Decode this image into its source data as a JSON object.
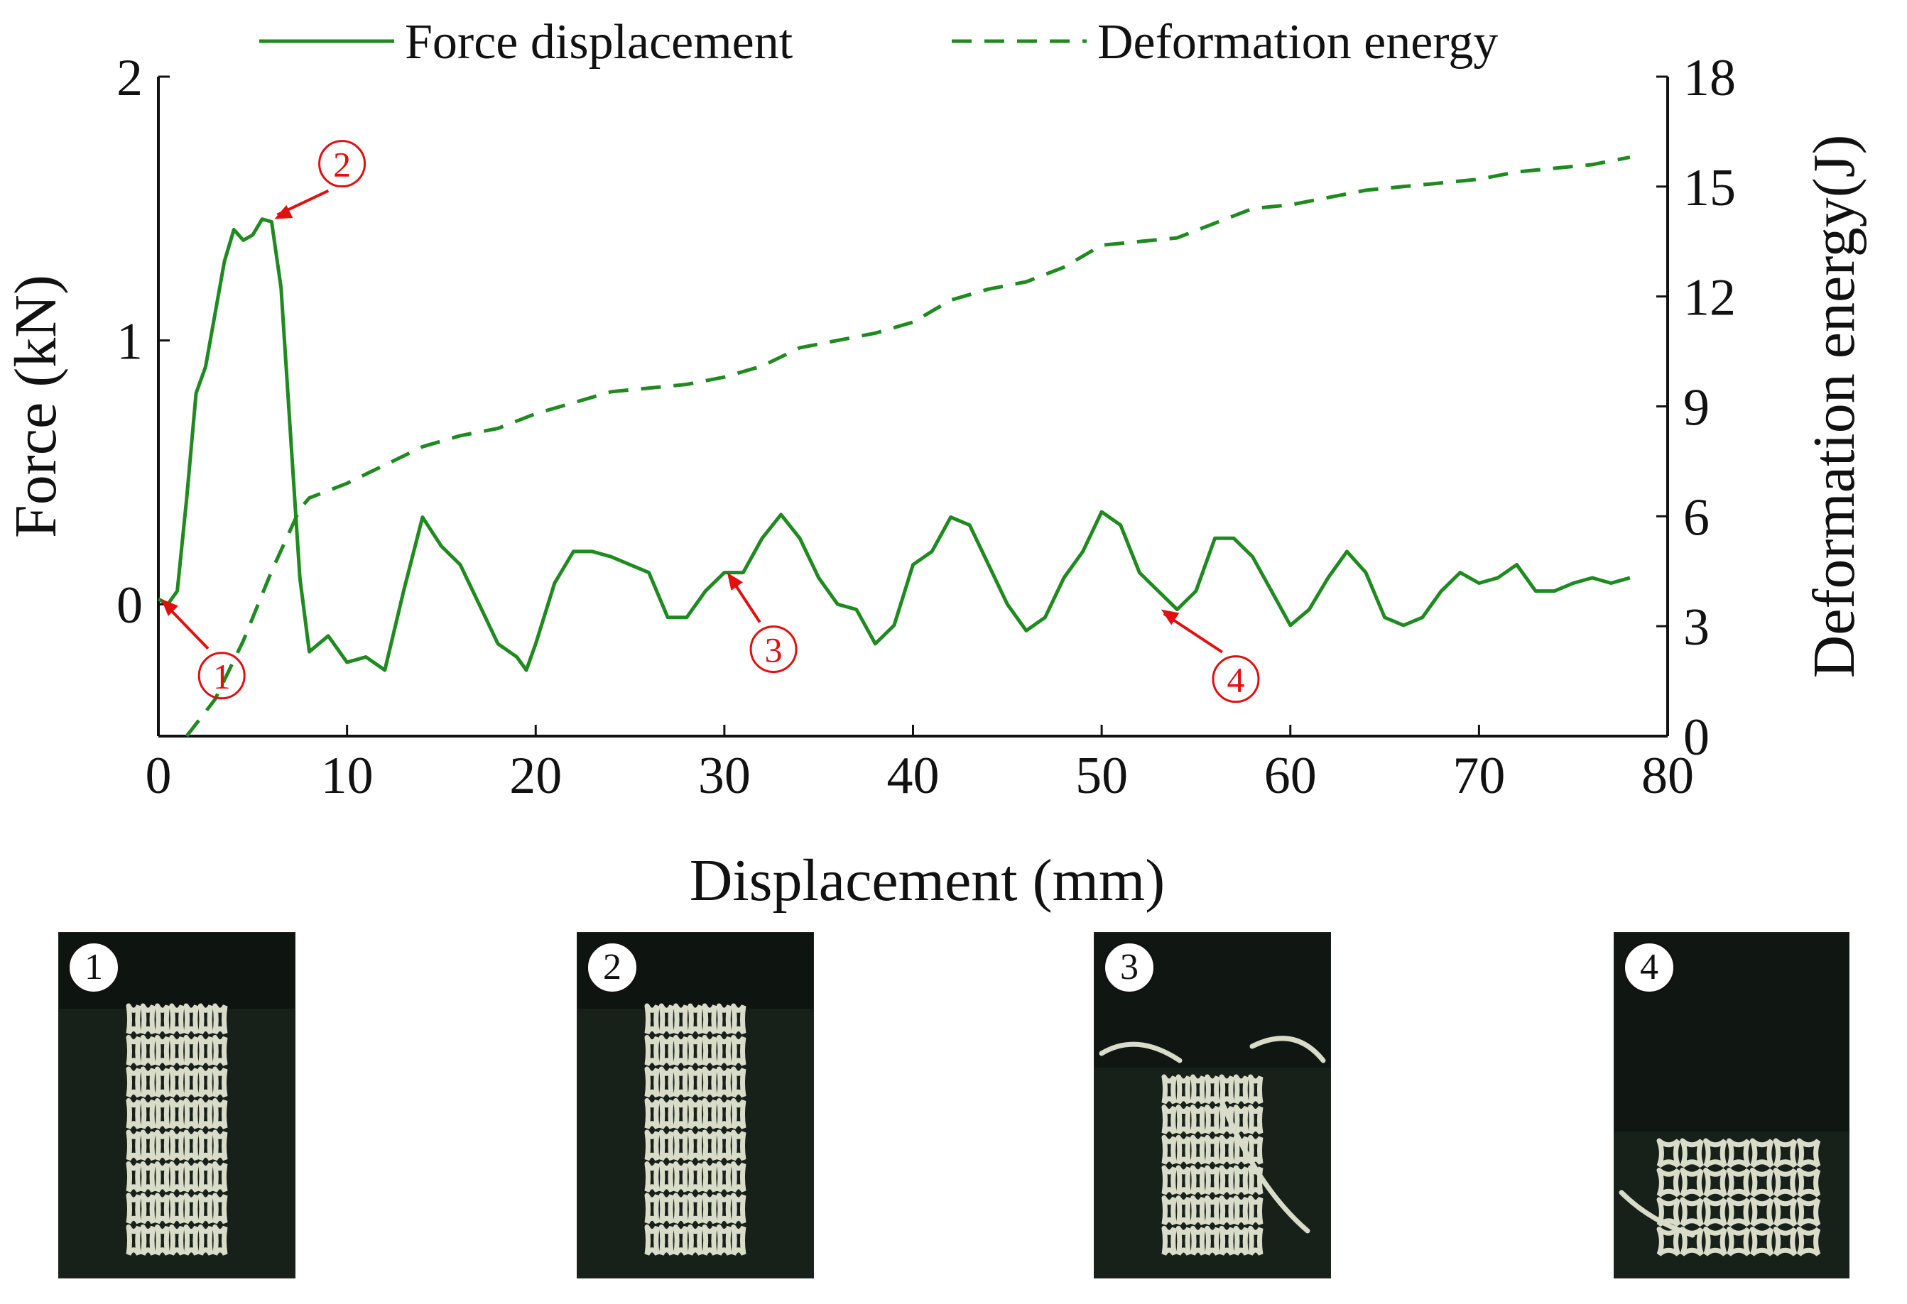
{
  "chart_data": {
    "type": "line",
    "xlabel": "Displacement (mm)",
    "ylabel": "Force (kN)",
    "y2label": "Deformation energy(J)",
    "xlim": [
      0,
      80
    ],
    "ylim": [
      -0.5,
      2
    ],
    "y2lim": [
      0,
      18
    ],
    "xticks": [
      "0",
      "10",
      "20",
      "30",
      "40",
      "50",
      "60",
      "70",
      "80"
    ],
    "yticks": [
      "0",
      "1",
      "2"
    ],
    "y2ticks": [
      "0",
      "3",
      "6",
      "9",
      "12",
      "15",
      "18"
    ],
    "legend_position": "top",
    "series": [
      {
        "name": "Force displacement",
        "axis": "left",
        "style": "solid",
        "color": "#1f8a1f",
        "x": [
          0,
          0.5,
          1,
          1.5,
          2,
          2.5,
          3,
          3.5,
          4,
          4.5,
          5,
          5.5,
          6,
          6.5,
          7,
          7.5,
          8,
          9,
          10,
          11,
          12,
          13,
          14,
          15,
          16,
          17,
          18,
          19,
          19.5,
          20,
          21,
          22,
          23,
          24,
          25,
          26,
          27,
          28,
          29,
          30,
          31,
          32,
          33,
          34,
          35,
          36,
          37,
          38,
          39,
          40,
          41,
          42,
          43,
          44,
          45,
          46,
          47,
          48,
          49,
          50,
          51,
          52,
          53,
          54,
          55,
          56,
          57,
          58,
          59,
          60,
          61,
          62,
          63,
          64,
          65,
          66,
          67,
          68,
          69,
          70,
          71,
          72,
          73,
          74,
          75,
          76,
          77,
          78
        ],
        "y": [
          0.02,
          0.0,
          0.05,
          0.4,
          0.8,
          0.9,
          1.1,
          1.3,
          1.42,
          1.38,
          1.4,
          1.46,
          1.45,
          1.2,
          0.65,
          0.1,
          -0.18,
          -0.12,
          -0.22,
          -0.2,
          -0.25,
          0.05,
          0.33,
          0.22,
          0.15,
          0.0,
          -0.15,
          -0.2,
          -0.25,
          -0.15,
          0.08,
          0.2,
          0.2,
          0.18,
          0.15,
          0.12,
          -0.05,
          -0.05,
          0.05,
          0.12,
          0.12,
          0.25,
          0.34,
          0.25,
          0.1,
          0.0,
          -0.02,
          -0.15,
          -0.08,
          0.15,
          0.2,
          0.33,
          0.3,
          0.15,
          0.0,
          -0.1,
          -0.05,
          0.1,
          0.2,
          0.35,
          0.3,
          0.12,
          0.05,
          -0.02,
          0.05,
          0.25,
          0.25,
          0.18,
          0.05,
          -0.08,
          -0.02,
          0.1,
          0.2,
          0.12,
          -0.05,
          -0.08,
          -0.05,
          0.05,
          0.12,
          0.08,
          0.1,
          0.15,
          0.05,
          0.05,
          0.08,
          0.1,
          0.08,
          0.1
        ]
      },
      {
        "name": "Deformation energy",
        "axis": "right",
        "style": "dashed",
        "color": "#1f8a1f",
        "x": [
          1.5,
          3,
          4.5,
          6,
          7.5,
          8,
          10,
          12,
          14,
          16,
          18,
          20,
          22,
          24,
          26,
          28,
          30,
          32,
          34,
          36,
          38,
          40,
          42,
          44,
          46,
          48,
          50,
          52,
          54,
          56,
          58,
          60,
          62,
          64,
          66,
          68,
          70,
          72,
          74,
          76,
          78
        ],
        "y": [
          0,
          1.0,
          2.6,
          4.5,
          6.2,
          6.5,
          6.9,
          7.4,
          7.9,
          8.2,
          8.4,
          8.8,
          9.1,
          9.4,
          9.5,
          9.6,
          9.8,
          10.1,
          10.6,
          10.8,
          11.0,
          11.3,
          11.9,
          12.2,
          12.4,
          12.8,
          13.4,
          13.5,
          13.6,
          14.0,
          14.4,
          14.5,
          14.7,
          14.9,
          15.0,
          15.1,
          15.2,
          15.4,
          15.5,
          15.6,
          15.8
        ]
      }
    ],
    "annotations": [
      {
        "label": "①",
        "x": 0,
        "y": 0.02
      },
      {
        "label": "②",
        "x": 6,
        "y": 1.46
      },
      {
        "label": "③",
        "x": 30,
        "y": 0.12
      },
      {
        "label": "④",
        "x": 53,
        "y": -0.02
      }
    ]
  },
  "photos": [
    {
      "label": "1",
      "state": "intact"
    },
    {
      "label": "2",
      "state": "peak"
    },
    {
      "label": "3",
      "state": "collapsing"
    },
    {
      "label": "4",
      "state": "crushed"
    }
  ]
}
